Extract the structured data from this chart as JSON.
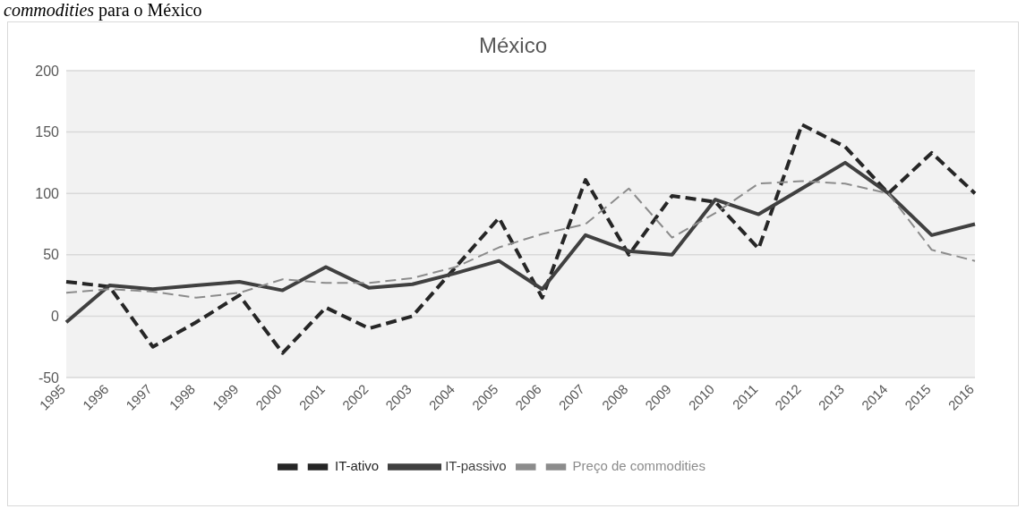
{
  "chart_data": {
    "type": "line",
    "title": "México",
    "annotations": [
      "commodities para o México"
    ],
    "categories": [
      "1995",
      "1996",
      "1997",
      "1998",
      "1999",
      "2000",
      "2001",
      "2002",
      "2003",
      "2004",
      "2005",
      "2006",
      "2007",
      "2008",
      "2009",
      "2010",
      "2011",
      "2012",
      "2013",
      "2014",
      "2015",
      "2016"
    ],
    "series": [
      {
        "name": "IT-ativo",
        "color": "#262626",
        "line_style": "dashed",
        "values": [
          28,
          24,
          -25,
          -5,
          17,
          -30,
          7,
          -10,
          0,
          40,
          80,
          15,
          111,
          50,
          98,
          93,
          55,
          156,
          138,
          100,
          133,
          100
        ]
      },
      {
        "name": "IT-passivo",
        "color": "#404040",
        "line_style": "solid",
        "values": [
          -5,
          25,
          22,
          25,
          28,
          21,
          40,
          23,
          26,
          35,
          45,
          22,
          66,
          53,
          50,
          95,
          83,
          104,
          125,
          100,
          66,
          75
        ]
      },
      {
        "name": "Preço de commodities",
        "color": "#8c8c8c",
        "line_style": "dashed",
        "values": [
          19,
          22,
          20,
          15,
          19,
          30,
          27,
          27,
          31,
          40,
          56,
          67,
          75,
          104,
          64,
          84,
          108,
          110,
          108,
          100,
          54,
          45
        ]
      }
    ],
    "ylim": [
      -50,
      200
    ],
    "yticks": [
      -50,
      0,
      50,
      100,
      150,
      200
    ],
    "grid": "y",
    "legend": "bottom",
    "marker": "none"
  }
}
